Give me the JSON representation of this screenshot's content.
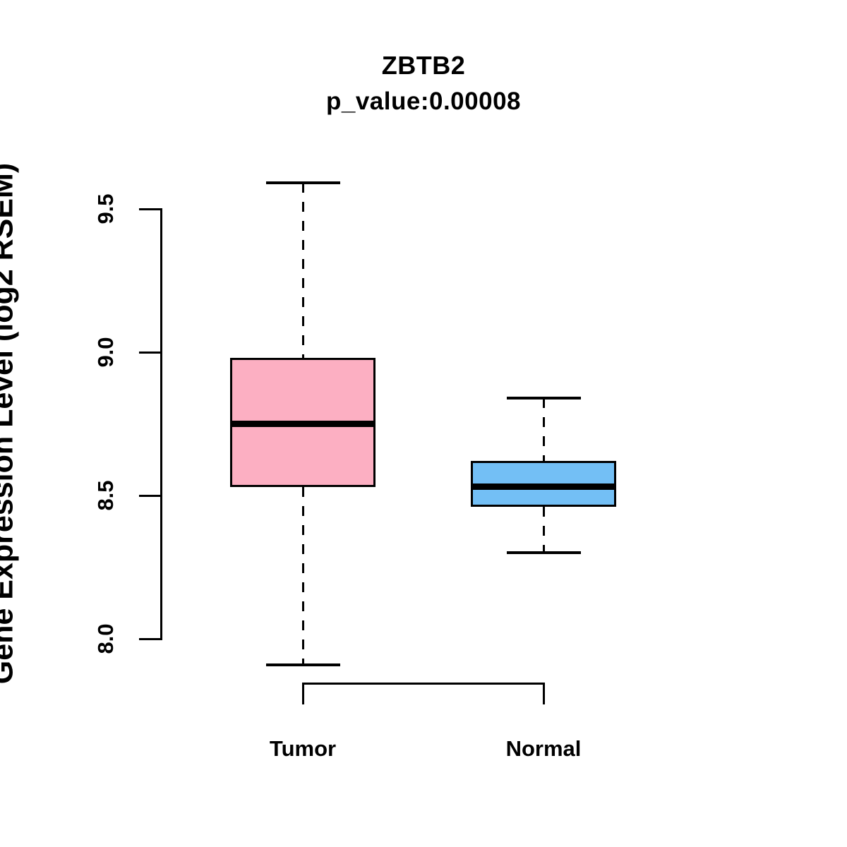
{
  "title": "ZBTB2",
  "subtitle": "p_value:0.00008",
  "ylabel": "Gene Expression Level (log2 RSEM)",
  "chart_data": {
    "type": "boxplot",
    "title": "ZBTB2",
    "subtitle": "p_value:0.00008",
    "xlabel": "",
    "ylabel": "Gene Expression Level (log2 RSEM)",
    "categories": [
      "Tumor",
      "Normal"
    ],
    "yticks": [
      "8.0",
      "8.5",
      "9.0",
      "9.5"
    ],
    "ylim": [
      7.8,
      9.7
    ],
    "grid": false,
    "legend": "none",
    "series": [
      {
        "name": "Tumor",
        "fill_color": "#FCAFC2",
        "stroke_color": "#000000",
        "whisker_low": 7.91,
        "q1": 8.53,
        "median": 8.75,
        "q3": 8.98,
        "whisker_high": 9.59,
        "outliers": []
      },
      {
        "name": "Normal",
        "fill_color": "#73BFF5",
        "stroke_color": "#000000",
        "whisker_low": 8.3,
        "q1": 8.46,
        "median": 8.53,
        "q3": 8.62,
        "whisker_high": 8.84,
        "outliers": []
      }
    ]
  }
}
